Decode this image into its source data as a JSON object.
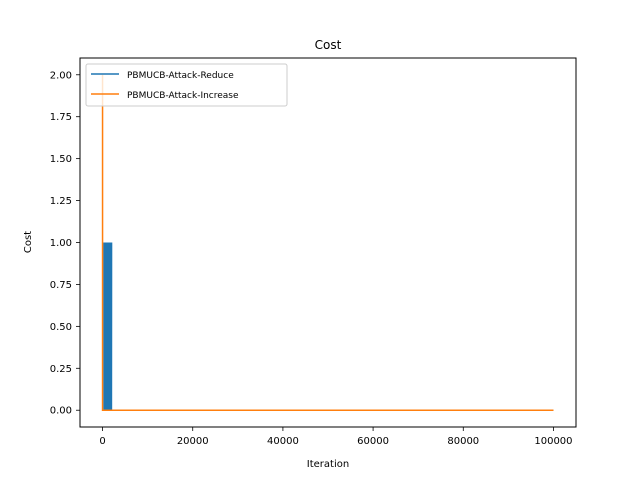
{
  "chart_data": {
    "type": "line",
    "title": "Cost",
    "xlabel": "Iteration",
    "ylabel": "Cost",
    "xlim": [
      -5000,
      105000
    ],
    "ylim": [
      -0.1,
      2.1
    ],
    "xticks": [
      0,
      20000,
      40000,
      60000,
      80000,
      100000
    ],
    "yticks": [
      0.0,
      0.25,
      0.5,
      0.75,
      1.0,
      1.25,
      1.5,
      1.75,
      2.0
    ],
    "xtick_labels": [
      "0",
      "20000",
      "40000",
      "60000",
      "80000",
      "100000"
    ],
    "ytick_labels": [
      "0.00",
      "0.25",
      "0.50",
      "0.75",
      "1.00",
      "1.25",
      "1.50",
      "1.75",
      "2.00"
    ],
    "grid": false,
    "legend_position": "top-left",
    "series": [
      {
        "name": "PBMUCB-Attack-Reduce",
        "color": "#1f77b4",
        "style": "oscillating",
        "oscillation": {
          "x_start": 300,
          "x_end": 2000,
          "low": 0.0,
          "high": 1.0
        },
        "points": [
          [
            0,
            0.0
          ],
          [
            300,
            0.0
          ],
          [
            2000,
            0.0
          ],
          [
            100000,
            0.0
          ]
        ]
      },
      {
        "name": "PBMUCB-Attack-Increase",
        "color": "#ff7f0e",
        "style": "line",
        "points": [
          [
            0,
            2.0
          ],
          [
            0,
            0.0
          ],
          [
            100000,
            0.0
          ]
        ]
      }
    ]
  }
}
